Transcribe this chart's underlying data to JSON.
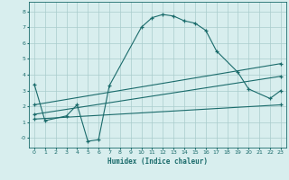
{
  "xlabel": "Humidex (Indice chaleur)",
  "ylabel": "",
  "bg_color": "#d8eeee",
  "grid_color": "#aacccc",
  "line_color": "#1a6b6b",
  "xlim": [
    -0.5,
    23.5
  ],
  "ylim": [
    -0.6,
    8.6
  ],
  "xticks": [
    0,
    1,
    2,
    3,
    4,
    5,
    6,
    7,
    8,
    9,
    10,
    11,
    12,
    13,
    14,
    15,
    16,
    17,
    18,
    19,
    20,
    21,
    22,
    23
  ],
  "yticks": [
    0,
    1,
    2,
    3,
    4,
    5,
    6,
    7,
    8
  ],
  "ytick_labels": [
    "-0",
    "1",
    "2",
    "3",
    "4",
    "5",
    "6",
    "7",
    "8"
  ],
  "lines": [
    {
      "x": [
        0,
        1,
        3,
        4,
        5,
        6,
        7,
        10,
        11,
        12,
        13,
        14,
        15,
        16,
        17,
        19,
        20,
        22,
        23
      ],
      "y": [
        3.4,
        1.1,
        1.4,
        2.1,
        -0.2,
        -0.1,
        3.3,
        7.0,
        7.6,
        7.8,
        7.7,
        7.4,
        7.25,
        6.8,
        5.5,
        4.15,
        3.1,
        2.5,
        3.0
      ]
    },
    {
      "x": [
        0,
        23
      ],
      "y": [
        1.2,
        2.1
      ]
    },
    {
      "x": [
        0,
        23
      ],
      "y": [
        1.5,
        3.9
      ]
    },
    {
      "x": [
        0,
        23
      ],
      "y": [
        2.1,
        4.7
      ]
    }
  ]
}
